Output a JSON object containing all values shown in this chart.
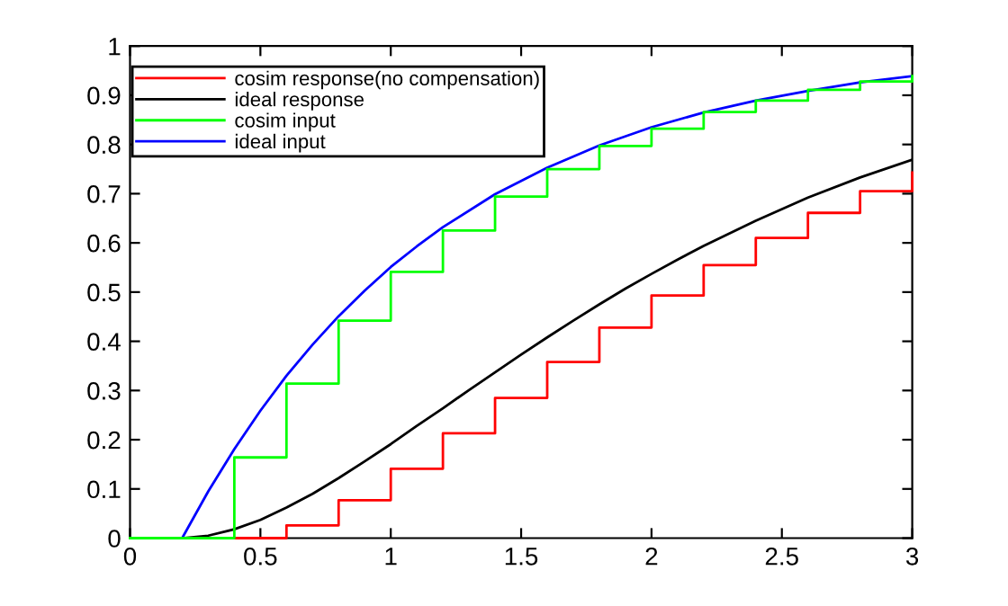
{
  "chart_data": {
    "type": "step",
    "xlim": [
      0,
      3
    ],
    "ylim": [
      0,
      1
    ],
    "xticks": [
      0,
      0.5,
      1,
      1.5,
      2,
      2.5,
      3
    ],
    "yticks": [
      0,
      0.1,
      0.2,
      0.3,
      0.4,
      0.5,
      0.6,
      0.7,
      0.8,
      0.9,
      1
    ],
    "grid": false,
    "legend": "top left",
    "line_style": "solid",
    "marker": "none",
    "series": [
      {
        "name": "cosim response(no compensation)",
        "color": "#ff0000",
        "x": [
          0.4,
          0.6,
          0.8,
          1.0,
          1.2,
          1.4,
          1.6,
          1.8,
          2.0,
          2.2,
          2.4,
          2.6,
          2.8,
          3.0
        ],
        "values": [
          0,
          0.026,
          0.077,
          0.141,
          0.213,
          0.285,
          0.358,
          0.428,
          0.493,
          0.555,
          0.61,
          0.661,
          0.705,
          0.743
        ]
      },
      {
        "name": "ideal response",
        "color": "#000000",
        "type": "line",
        "x": [
          0,
          0.2,
          0.3,
          0.4,
          0.5,
          0.6,
          0.7,
          0.8,
          0.9,
          1.0,
          1.1,
          1.2,
          1.3,
          1.4,
          1.5,
          1.6,
          1.7,
          1.8,
          1.9,
          2.0,
          2.1,
          2.2,
          2.4,
          2.6,
          2.8,
          3.0
        ],
        "values": [
          0,
          0,
          0.005,
          0.018,
          0.037,
          0.062,
          0.09,
          0.122,
          0.156,
          0.191,
          0.228,
          0.264,
          0.301,
          0.337,
          0.373,
          0.408,
          0.442,
          0.475,
          0.507,
          0.537,
          0.566,
          0.594,
          0.645,
          0.692,
          0.733,
          0.769
        ]
      },
      {
        "name": "cosim input",
        "color": "#00ff00",
        "x": [
          0,
          0.2,
          0.4,
          0.6,
          0.8,
          1.0,
          1.2,
          1.4,
          1.6,
          1.8,
          2.0,
          2.2,
          2.4,
          2.6,
          2.8,
          3.0
        ],
        "values": [
          0,
          0,
          0.164,
          0.314,
          0.442,
          0.541,
          0.625,
          0.694,
          0.75,
          0.797,
          0.832,
          0.866,
          0.889,
          0.911,
          0.928,
          0.939
        ]
      },
      {
        "name": "ideal input",
        "color": "#0000ff",
        "type": "line",
        "x": [
          0,
          0.2,
          0.3,
          0.4,
          0.5,
          0.6,
          0.7,
          0.8,
          0.9,
          1.0,
          1.1,
          1.2,
          1.4,
          1.6,
          1.8,
          2.0,
          2.2,
          2.4,
          2.6,
          2.8,
          3.0
        ],
        "values": [
          0,
          0,
          0.095,
          0.181,
          0.259,
          0.33,
          0.393,
          0.451,
          0.503,
          0.551,
          0.593,
          0.632,
          0.699,
          0.753,
          0.798,
          0.835,
          0.865,
          0.889,
          0.909,
          0.926,
          0.939
        ]
      }
    ]
  }
}
